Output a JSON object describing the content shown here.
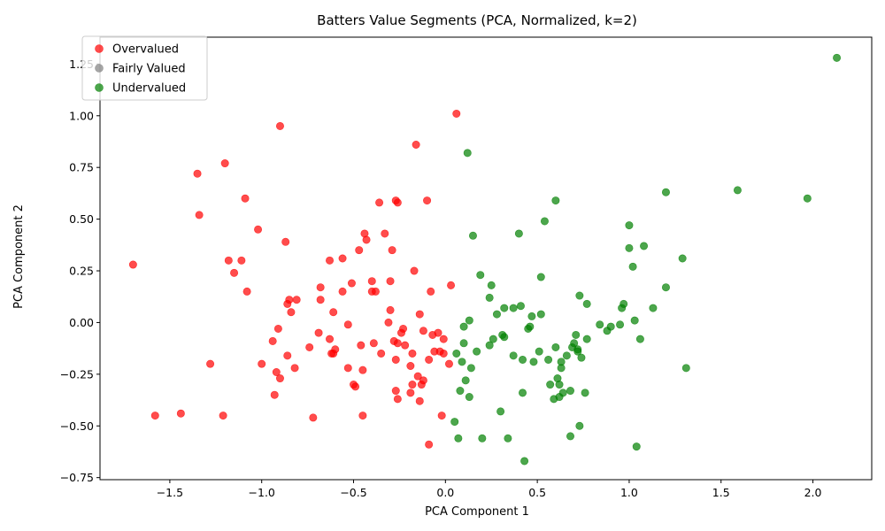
{
  "chart_data": {
    "type": "scatter",
    "title": "Batters Value Segments (PCA, Normalized, k=2)",
    "xlabel": "PCA Component 1",
    "ylabel": "PCA Component 2",
    "xlim": [
      -1.88,
      2.32
    ],
    "ylim": [
      -0.76,
      1.38
    ],
    "xticks": [
      -1.5,
      -1.0,
      -0.5,
      0.0,
      0.5,
      1.0,
      1.5,
      2.0
    ],
    "xtick_labels": [
      "−1.5",
      "−1.0",
      "−0.5",
      "0.0",
      "0.5",
      "1.0",
      "1.5",
      "2.0"
    ],
    "yticks": [
      -0.75,
      -0.5,
      -0.25,
      0.0,
      0.25,
      0.5,
      0.75,
      1.0,
      1.25
    ],
    "ytick_labels": [
      "−0.75",
      "−0.50",
      "−0.25",
      "0.00",
      "0.25",
      "0.50",
      "0.75",
      "1.00",
      "1.25"
    ],
    "grid": false,
    "legend_position": "top-left",
    "series": [
      {
        "name": "Overvalued",
        "color": "#ff0000",
        "points": [
          [
            -1.7,
            0.28
          ],
          [
            -1.58,
            -0.45
          ],
          [
            -1.44,
            -0.44
          ],
          [
            -1.35,
            0.72
          ],
          [
            -1.34,
            0.52
          ],
          [
            -1.28,
            -0.2
          ],
          [
            -1.21,
            -0.45
          ],
          [
            -1.2,
            0.77
          ],
          [
            -1.18,
            0.3
          ],
          [
            -1.15,
            0.24
          ],
          [
            -1.11,
            0.3
          ],
          [
            -1.09,
            0.6
          ],
          [
            -1.08,
            0.15
          ],
          [
            -1.02,
            0.45
          ],
          [
            -1.0,
            -0.2
          ],
          [
            -0.94,
            -0.09
          ],
          [
            -0.93,
            -0.35
          ],
          [
            -0.92,
            -0.24
          ],
          [
            -0.91,
            -0.03
          ],
          [
            -0.9,
            0.95
          ],
          [
            -0.9,
            -0.27
          ],
          [
            -0.87,
            0.39
          ],
          [
            -0.86,
            0.09
          ],
          [
            -0.86,
            -0.16
          ],
          [
            -0.85,
            0.11
          ],
          [
            -0.84,
            0.05
          ],
          [
            -0.82,
            -0.22
          ],
          [
            -0.81,
            0.11
          ],
          [
            -0.74,
            -0.12
          ],
          [
            -0.72,
            -0.46
          ],
          [
            -0.69,
            -0.05
          ],
          [
            -0.68,
            0.11
          ],
          [
            -0.68,
            0.17
          ],
          [
            -0.63,
            0.3
          ],
          [
            -0.63,
            -0.08
          ],
          [
            -0.62,
            -0.15
          ],
          [
            -0.61,
            -0.15
          ],
          [
            -0.61,
            0.05
          ],
          [
            -0.6,
            -0.13
          ],
          [
            -0.56,
            0.15
          ],
          [
            -0.56,
            0.31
          ],
          [
            -0.53,
            -0.01
          ],
          [
            -0.53,
            -0.22
          ],
          [
            -0.51,
            0.19
          ],
          [
            -0.5,
            -0.3
          ],
          [
            -0.49,
            -0.31
          ],
          [
            -0.47,
            0.35
          ],
          [
            -0.46,
            -0.11
          ],
          [
            -0.45,
            -0.45
          ],
          [
            -0.45,
            -0.23
          ],
          [
            -0.44,
            0.43
          ],
          [
            -0.43,
            0.4
          ],
          [
            -0.4,
            0.2
          ],
          [
            -0.4,
            0.15
          ],
          [
            -0.39,
            -0.1
          ],
          [
            -0.38,
            0.15
          ],
          [
            -0.36,
            0.58
          ],
          [
            -0.35,
            -0.15
          ],
          [
            -0.33,
            0.43
          ],
          [
            -0.31,
            0.0
          ],
          [
            -0.3,
            0.06
          ],
          [
            -0.3,
            0.2
          ],
          [
            -0.29,
            0.35
          ],
          [
            -0.28,
            -0.09
          ],
          [
            -0.27,
            0.59
          ],
          [
            -0.27,
            -0.18
          ],
          [
            -0.27,
            -0.33
          ],
          [
            -0.26,
            -0.37
          ],
          [
            -0.26,
            -0.1
          ],
          [
            -0.26,
            0.58
          ],
          [
            -0.24,
            -0.05
          ],
          [
            -0.23,
            -0.03
          ],
          [
            -0.22,
            -0.11
          ],
          [
            -0.19,
            -0.21
          ],
          [
            -0.19,
            -0.34
          ],
          [
            -0.18,
            -0.3
          ],
          [
            -0.18,
            -0.15
          ],
          [
            -0.17,
            0.25
          ],
          [
            -0.16,
            0.86
          ],
          [
            -0.15,
            -0.26
          ],
          [
            -0.14,
            -0.38
          ],
          [
            -0.14,
            0.04
          ],
          [
            -0.13,
            -0.3
          ],
          [
            -0.12,
            -0.28
          ],
          [
            -0.12,
            -0.04
          ],
          [
            -0.1,
            0.59
          ],
          [
            -0.09,
            -0.59
          ],
          [
            -0.09,
            -0.18
          ],
          [
            -0.08,
            0.15
          ],
          [
            -0.07,
            -0.06
          ],
          [
            -0.06,
            -0.14
          ],
          [
            -0.04,
            -0.05
          ],
          [
            -0.03,
            -0.14
          ],
          [
            -0.02,
            -0.45
          ],
          [
            -0.01,
            -0.15
          ],
          [
            -0.01,
            -0.08
          ],
          [
            0.02,
            -0.2
          ],
          [
            0.03,
            0.18
          ],
          [
            0.06,
            1.01
          ]
        ]
      },
      {
        "name": "Fairly Valued",
        "color": "#808080",
        "points": []
      },
      {
        "name": "Undervalued",
        "color": "#008000",
        "points": [
          [
            0.05,
            -0.48
          ],
          [
            0.06,
            -0.15
          ],
          [
            0.07,
            -0.56
          ],
          [
            0.08,
            -0.33
          ],
          [
            0.09,
            -0.19
          ],
          [
            0.1,
            -0.1
          ],
          [
            0.1,
            -0.02
          ],
          [
            0.11,
            -0.28
          ],
          [
            0.12,
            0.82
          ],
          [
            0.13,
            -0.36
          ],
          [
            0.13,
            0.01
          ],
          [
            0.14,
            -0.22
          ],
          [
            0.15,
            0.42
          ],
          [
            0.17,
            -0.14
          ],
          [
            0.19,
            0.23
          ],
          [
            0.2,
            -0.56
          ],
          [
            0.24,
            0.12
          ],
          [
            0.24,
            -0.11
          ],
          [
            0.25,
            0.18
          ],
          [
            0.26,
            -0.08
          ],
          [
            0.28,
            0.04
          ],
          [
            0.3,
            -0.43
          ],
          [
            0.31,
            -0.06
          ],
          [
            0.32,
            -0.07
          ],
          [
            0.32,
            0.07
          ],
          [
            0.34,
            -0.56
          ],
          [
            0.37,
            -0.16
          ],
          [
            0.37,
            0.07
          ],
          [
            0.4,
            0.43
          ],
          [
            0.41,
            0.08
          ],
          [
            0.42,
            -0.18
          ],
          [
            0.42,
            -0.34
          ],
          [
            0.43,
            -0.67
          ],
          [
            0.45,
            -0.03
          ],
          [
            0.46,
            -0.02
          ],
          [
            0.47,
            0.03
          ],
          [
            0.48,
            -0.19
          ],
          [
            0.51,
            -0.14
          ],
          [
            0.52,
            0.22
          ],
          [
            0.52,
            0.04
          ],
          [
            0.54,
            0.49
          ],
          [
            0.56,
            -0.18
          ],
          [
            0.57,
            -0.3
          ],
          [
            0.59,
            -0.37
          ],
          [
            0.6,
            0.59
          ],
          [
            0.6,
            -0.12
          ],
          [
            0.61,
            -0.27
          ],
          [
            0.62,
            -0.3
          ],
          [
            0.62,
            -0.36
          ],
          [
            0.63,
            -0.19
          ],
          [
            0.63,
            -0.22
          ],
          [
            0.64,
            -0.34
          ],
          [
            0.66,
            -0.16
          ],
          [
            0.68,
            -0.33
          ],
          [
            0.68,
            -0.55
          ],
          [
            0.69,
            -0.12
          ],
          [
            0.7,
            -0.1
          ],
          [
            0.71,
            -0.06
          ],
          [
            0.72,
            -0.13
          ],
          [
            0.72,
            -0.14
          ],
          [
            0.73,
            -0.5
          ],
          [
            0.73,
            0.13
          ],
          [
            0.74,
            -0.17
          ],
          [
            0.76,
            -0.34
          ],
          [
            0.77,
            -0.08
          ],
          [
            0.77,
            0.09
          ],
          [
            0.84,
            -0.01
          ],
          [
            0.88,
            -0.04
          ],
          [
            0.9,
            -0.02
          ],
          [
            0.95,
            -0.01
          ],
          [
            0.96,
            0.07
          ],
          [
            0.97,
            0.09
          ],
          [
            1.0,
            0.47
          ],
          [
            1.0,
            0.36
          ],
          [
            1.02,
            0.27
          ],
          [
            1.03,
            0.01
          ],
          [
            1.04,
            -0.6
          ],
          [
            1.06,
            -0.08
          ],
          [
            1.08,
            0.37
          ],
          [
            1.13,
            0.07
          ],
          [
            1.2,
            0.63
          ],
          [
            1.2,
            0.17
          ],
          [
            1.29,
            0.31
          ],
          [
            1.31,
            -0.22
          ],
          [
            1.59,
            0.64
          ],
          [
            1.97,
            0.6
          ],
          [
            2.13,
            1.28
          ]
        ]
      }
    ]
  }
}
